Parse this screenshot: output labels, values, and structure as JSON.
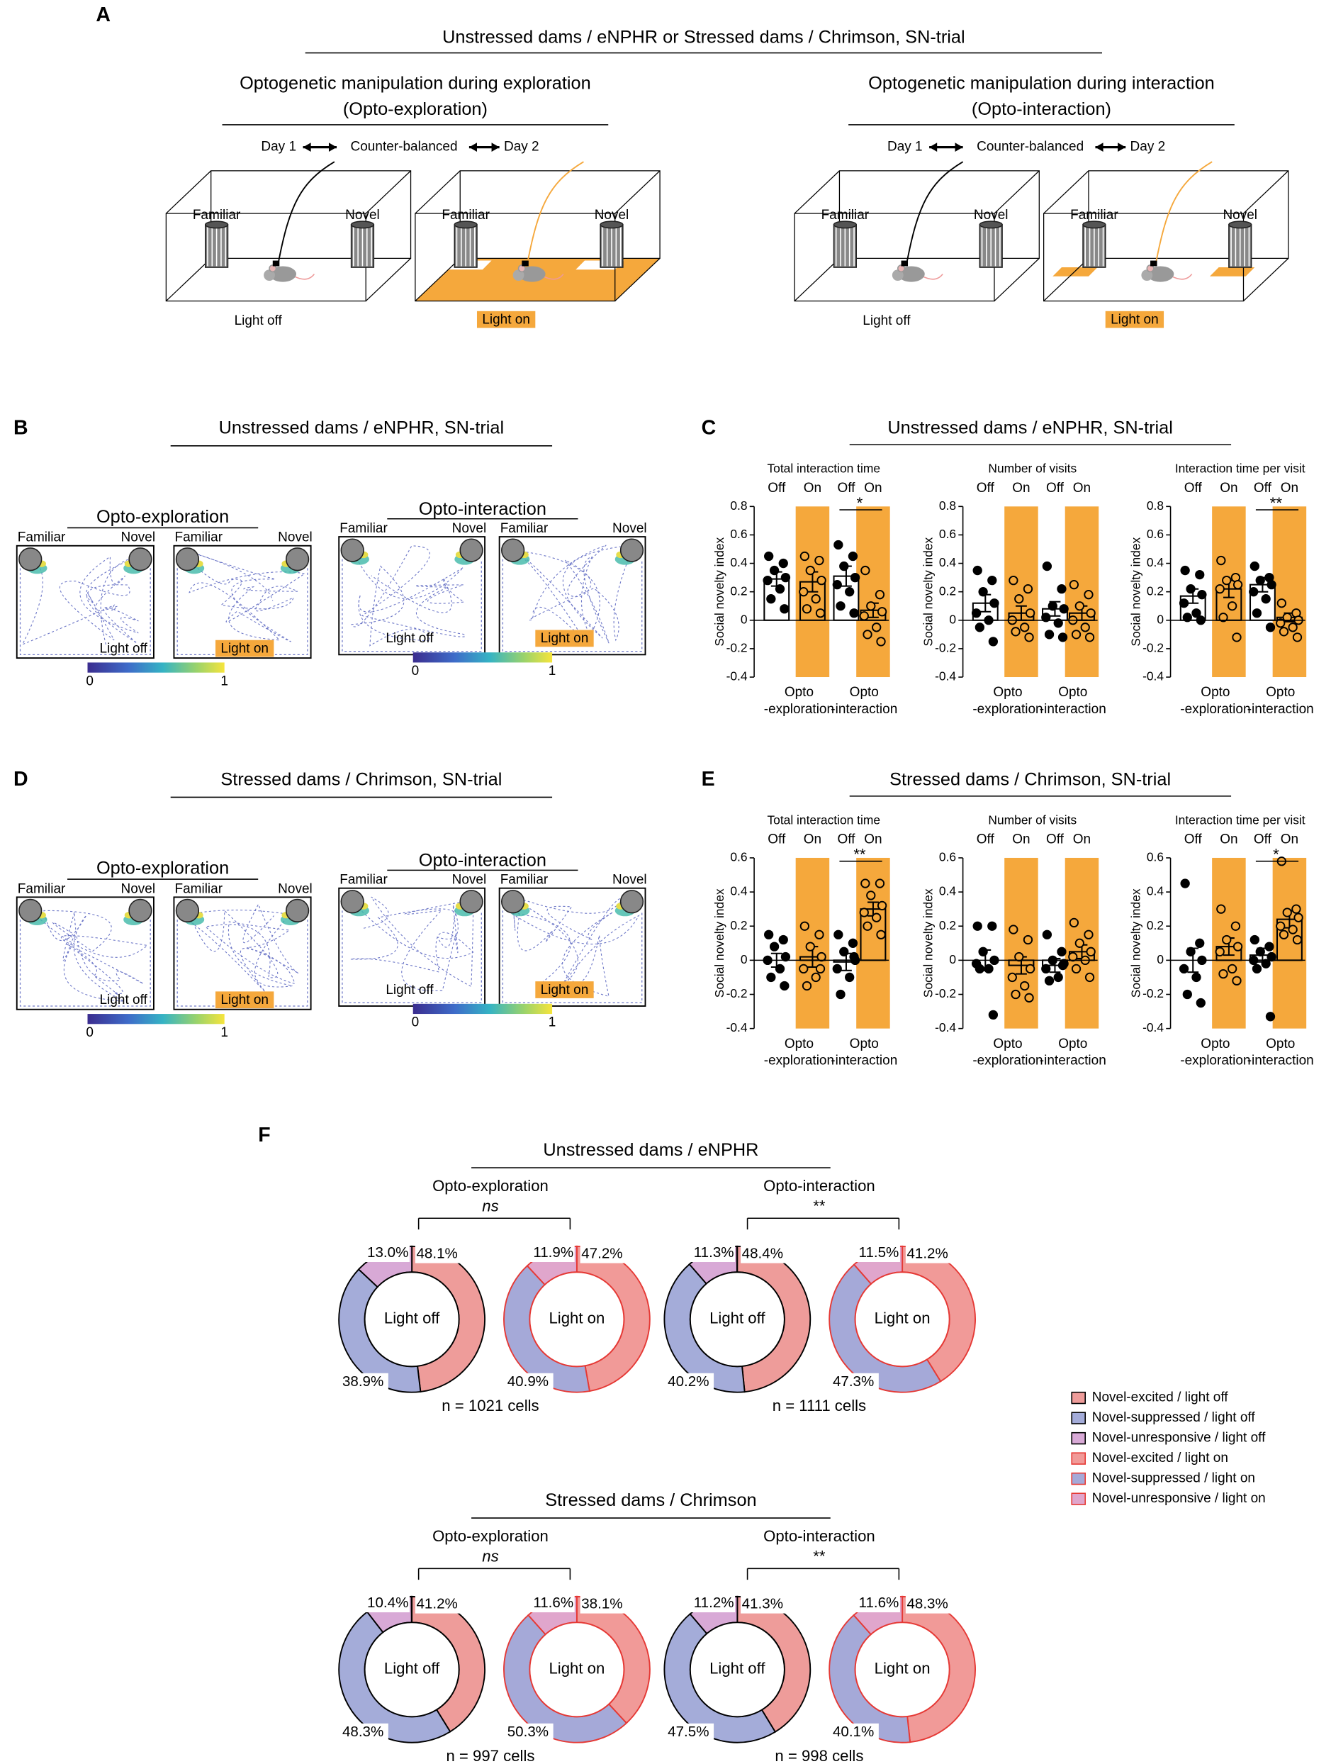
{
  "panel_a": {
    "letter": "A",
    "title": "Unstressed dams / eNPHR or Stressed dams / Chrimson, SN-trial",
    "left": {
      "title": "Optogenetic manipulation during exploration",
      "subtitle": "(Opto-exploration)",
      "day1": "Day 1",
      "balance": "Counter-balanced",
      "day2": "Day 2",
      "familiar": "Familiar",
      "novel": "Novel",
      "off": "Light off",
      "on": "Light on"
    },
    "right": {
      "title": "Optogenetic manipulation during interaction",
      "subtitle": "(Opto-interaction)",
      "day1": "Day 1",
      "balance": "Counter-balanced",
      "day2": "Day 2",
      "familiar": "Familiar",
      "novel": "Novel",
      "off": "Light off",
      "on": "Light on"
    }
  },
  "panel_b": {
    "letter": "B",
    "title": "Unstressed dams / eNPHR, SN-trial",
    "exploration": "Opto-exploration",
    "interaction": "Opto-interaction",
    "familiar": "Familiar",
    "novel": "Novel",
    "off": "Light off",
    "on": "Light on",
    "scale": [
      0,
      1
    ]
  },
  "panel_d": {
    "letter": "D",
    "title": "Stressed dams / Chrimson, SN-trial",
    "exploration": "Opto-exploration",
    "interaction": "Opto-interaction",
    "familiar": "Familiar",
    "novel": "Novel",
    "off": "Light off",
    "on": "Light on",
    "scale": [
      0,
      1
    ]
  },
  "panel_c": {
    "letter": "C",
    "title": "Unstressed dams / eNPHR, SN-trial",
    "on_color": "#e8573a",
    "band_color": "#f5a83c",
    "charts": [
      {
        "title": "Total interaction time",
        "legend": [
          "Off",
          "On",
          "Off",
          "On"
        ],
        "ylabel": "Social novelty index",
        "ylim": [
          -0.4,
          0.8
        ],
        "yticks": [
          -0.4,
          -0.2,
          0,
          0.2,
          0.4,
          0.6,
          0.8
        ],
        "groups": [
          [
            "Opto",
            "-exploration"
          ],
          [
            "Opto",
            "-interaction"
          ]
        ],
        "means": [
          0.29,
          0.27,
          0.31,
          0.07
        ],
        "sems": [
          0.05,
          0.07,
          0.07,
          0.05
        ],
        "sig": "*",
        "points": [
          [
            0.45,
            0.4,
            0.35,
            0.3,
            0.28,
            0.22,
            0.15,
            0.08
          ],
          [
            0.45,
            0.42,
            0.35,
            0.28,
            0.2,
            0.15,
            0.08,
            0.05
          ],
          [
            0.53,
            0.45,
            0.38,
            0.3,
            0.25,
            0.2,
            0.1,
            0.05
          ],
          [
            0.35,
            0.18,
            0.1,
            0.06,
            0.03,
            -0.05,
            -0.1,
            -0.15
          ]
        ]
      },
      {
        "title": "Number of visits",
        "legend": [
          "Off",
          "On",
          "Off",
          "On"
        ],
        "ylabel": "Social novelty index",
        "ylim": [
          -0.4,
          0.8
        ],
        "yticks": [
          -0.4,
          -0.2,
          0,
          0.2,
          0.4,
          0.6,
          0.8
        ],
        "groups": [
          [
            "Opto",
            "-exploration"
          ],
          [
            "Opto",
            "-interaction"
          ]
        ],
        "means": [
          0.12,
          0.05,
          0.08,
          0.05
        ],
        "sems": [
          0.06,
          0.05,
          0.05,
          0.05
        ],
        "points": [
          [
            0.35,
            0.28,
            0.2,
            0.12,
            0.05,
            0,
            -0.05,
            -0.15
          ],
          [
            0.28,
            0.22,
            0.15,
            0.05,
            0,
            -0.05,
            -0.08,
            -0.12
          ],
          [
            0.38,
            0.22,
            0.1,
            0.08,
            0.02,
            -0.02,
            -0.1,
            -0.12
          ],
          [
            0.25,
            0.18,
            0.1,
            0.05,
            0,
            -0.05,
            -0.1,
            -0.12
          ]
        ]
      },
      {
        "title": "Interaction time per visit",
        "legend": [
          "Off",
          "On",
          "Off",
          "On"
        ],
        "ylabel": "Social novelty index",
        "ylim": [
          -0.4,
          0.8
        ],
        "yticks": [
          -0.4,
          -0.2,
          0,
          0.2,
          0.4,
          0.6,
          0.8
        ],
        "groups": [
          [
            "Opto",
            "-exploration"
          ],
          [
            "Opto",
            "-interaction"
          ]
        ],
        "means": [
          0.17,
          0.22,
          0.25,
          0.02
        ],
        "sems": [
          0.05,
          0.06,
          0.05,
          0.03
        ],
        "sig": "**",
        "points": [
          [
            0.35,
            0.32,
            0.22,
            0.18,
            0.12,
            0.05,
            0.02,
            0
          ],
          [
            0.42,
            0.3,
            0.28,
            0.25,
            0.22,
            0.1,
            0.02,
            -0.12
          ],
          [
            0.38,
            0.3,
            0.28,
            0.25,
            0.2,
            0.15,
            0.05,
            -0.05
          ],
          [
            0.12,
            0.05,
            0.02,
            0,
            -0.02,
            -0.05,
            -0.08,
            -0.12
          ]
        ]
      }
    ]
  },
  "panel_e": {
    "letter": "E",
    "title": "Stressed dams / Chrimson, SN-trial",
    "on_color": "#e8573a",
    "band_color": "#f5a83c",
    "charts": [
      {
        "title": "Total interaction time",
        "legend": [
          "Off",
          "On",
          "Off",
          "On"
        ],
        "ylabel": "Social novelty index",
        "ylim": [
          -0.4,
          0.6
        ],
        "yticks": [
          -0.4,
          -0.2,
          0,
          0.2,
          0.4,
          0.6
        ],
        "groups": [
          [
            "Opto",
            "-exploration"
          ],
          [
            "Opto",
            "-interaction"
          ]
        ],
        "means": [
          0.0,
          0.02,
          -0.01,
          0.3
        ],
        "sems": [
          0.04,
          0.06,
          0.05,
          0.04
        ],
        "sig": "**",
        "points": [
          [
            0.15,
            0.12,
            0.08,
            0.02,
            0,
            -0.05,
            -0.1,
            -0.15
          ],
          [
            0.2,
            0.15,
            0.08,
            0.02,
            -0.05,
            -0.1,
            -0.15,
            -0.05
          ],
          [
            0.15,
            0.1,
            0.05,
            0,
            -0.05,
            -0.1,
            -0.2,
            0.02
          ],
          [
            0.45,
            0.45,
            0.38,
            0.32,
            0.28,
            0.25,
            0.2,
            0.15
          ]
        ]
      },
      {
        "title": "Number of visits",
        "legend": [
          "Off",
          "On",
          "Off",
          "On"
        ],
        "ylabel": "Social novelty index",
        "ylim": [
          -0.4,
          0.6
        ],
        "yticks": [
          -0.4,
          -0.2,
          0,
          0.2,
          0.4,
          0.6
        ],
        "groups": [
          [
            "Opto",
            "-exploration"
          ],
          [
            "Opto",
            "-interaction"
          ]
        ],
        "means": [
          0.0,
          -0.03,
          -0.03,
          0.05
        ],
        "sems": [
          0.06,
          0.05,
          0.04,
          0.04
        ],
        "points": [
          [
            0.2,
            0.2,
            0.05,
            0,
            -0.02,
            -0.05,
            -0.05,
            -0.32
          ],
          [
            0.18,
            0.12,
            0.02,
            -0.05,
            -0.1,
            -0.15,
            -0.2,
            -0.22
          ],
          [
            0.15,
            0.05,
            0,
            -0.02,
            -0.05,
            -0.1,
            -0.12,
            -0.03
          ],
          [
            0.22,
            0.15,
            0.1,
            0.05,
            0.02,
            0,
            -0.05,
            -0.1
          ]
        ]
      },
      {
        "title": "Interaction time per visit",
        "legend": [
          "Off",
          "On",
          "Off",
          "On"
        ],
        "ylabel": "Social novelty index",
        "ylim": [
          -0.4,
          0.6
        ],
        "yticks": [
          -0.4,
          -0.2,
          0,
          0.2,
          0.4,
          0.6
        ],
        "groups": [
          [
            "Opto",
            "-exploration"
          ],
          [
            "Opto",
            "-interaction"
          ]
        ],
        "means": [
          0.0,
          0.08,
          0.03,
          0.24
        ],
        "sems": [
          0.07,
          0.05,
          0.04,
          0.05
        ],
        "sig": "*",
        "points": [
          [
            0.45,
            0.1,
            0.05,
            0,
            -0.05,
            -0.1,
            -0.2,
            -0.25
          ],
          [
            0.3,
            0.2,
            0.12,
            0.08,
            0.05,
            -0.05,
            -0.08,
            -0.12
          ],
          [
            0.12,
            0.08,
            0.05,
            0.02,
            0,
            -0.02,
            -0.05,
            -0.33
          ],
          [
            0.58,
            0.3,
            0.28,
            0.25,
            0.2,
            0.18,
            0.15,
            0.12
          ]
        ]
      }
    ]
  },
  "panel_f": {
    "letter": "F",
    "legend": [
      {
        "name": "Novel-excited / light off",
        "color": "#ee9c9a",
        "border": "#000000"
      },
      {
        "name": "Novel-suppressed / light off",
        "color": "#a4acd9",
        "border": "#000000"
      },
      {
        "name": "Novel-unresponsive / light off",
        "color": "#d8a9d6",
        "border": "#000000"
      },
      {
        "name": "Novel-excited / light on",
        "color": "#f19a98",
        "border": "#e53935"
      },
      {
        "name": "Novel-suppressed / light on",
        "color": "#a5a9d8",
        "border": "#e53935"
      },
      {
        "name": "Novel-unresponsive / light on",
        "color": "#e0a6cc",
        "border": "#e53935"
      }
    ],
    "groups": [
      {
        "title": "Unstressed dams / eNPHR",
        "comparisons": [
          {
            "label": "Opto-exploration",
            "stat": "ns",
            "n": "n = 1021 cells",
            "donuts": [
              {
                "center": "Light off",
                "values": [
                  48.1,
                  38.9,
                  13.0
                ],
                "value_labels": [
                  "48.1%",
                  "38.9%",
                  "13.0%"
                ],
                "colors": [
                  "#ee9c9a",
                  "#a4acd9",
                  "#d8a9d6"
                ],
                "border": "#000000"
              },
              {
                "center": "Light on",
                "values": [
                  47.2,
                  40.9,
                  11.9
                ],
                "value_labels": [
                  "47.2%",
                  "40.9%",
                  "11.9%"
                ],
                "colors": [
                  "#f19a98",
                  "#a5a9d8",
                  "#e0a6cc"
                ],
                "border": "#e53935"
              }
            ]
          },
          {
            "label": "Opto-interaction",
            "stat": "**",
            "n": "n = 1111 cells",
            "donuts": [
              {
                "center": "Light off",
                "values": [
                  48.4,
                  40.2,
                  11.3
                ],
                "value_labels": [
                  "48.4%",
                  "40.2%",
                  "11.3%"
                ],
                "colors": [
                  "#ee9c9a",
                  "#a4acd9",
                  "#d8a9d6"
                ],
                "border": "#000000"
              },
              {
                "center": "Light on",
                "values": [
                  41.2,
                  47.3,
                  11.5
                ],
                "value_labels": [
                  "41.2%",
                  "47.3%",
                  "11.5%"
                ],
                "colors": [
                  "#f19a98",
                  "#a5a9d8",
                  "#e0a6cc"
                ],
                "border": "#e53935"
              }
            ]
          }
        ]
      },
      {
        "title": "Stressed dams / Chrimson",
        "comparisons": [
          {
            "label": "Opto-exploration",
            "stat": "ns",
            "n": "n = 997 cells",
            "donuts": [
              {
                "center": "Light off",
                "values": [
                  41.2,
                  48.3,
                  10.4
                ],
                "value_labels": [
                  "41.2%",
                  "48.3%",
                  "10.4%"
                ],
                "colors": [
                  "#ee9c9a",
                  "#a4acd9",
                  "#d8a9d6"
                ],
                "border": "#000000"
              },
              {
                "center": "Light on",
                "values": [
                  38.1,
                  50.3,
                  11.6
                ],
                "value_labels": [
                  "38.1%",
                  "50.3%",
                  "11.6%"
                ],
                "colors": [
                  "#f19a98",
                  "#a5a9d8",
                  "#e0a6cc"
                ],
                "border": "#e53935"
              }
            ]
          },
          {
            "label": "Opto-interaction",
            "stat": "**",
            "n": "n = 998 cells",
            "donuts": [
              {
                "center": "Light off",
                "values": [
                  41.3,
                  47.5,
                  11.2
                ],
                "value_labels": [
                  "41.3%",
                  "47.5%",
                  "11.2%"
                ],
                "colors": [
                  "#ee9c9a",
                  "#a4acd9",
                  "#d8a9d6"
                ],
                "border": "#000000"
              },
              {
                "center": "Light on",
                "values": [
                  48.3,
                  40.1,
                  11.6
                ],
                "value_labels": [
                  "48.3%",
                  "40.1%",
                  "11.6%"
                ],
                "colors": [
                  "#f19a98",
                  "#a5a9d8",
                  "#e0a6cc"
                ],
                "border": "#e53935"
              }
            ]
          }
        ]
      }
    ]
  }
}
